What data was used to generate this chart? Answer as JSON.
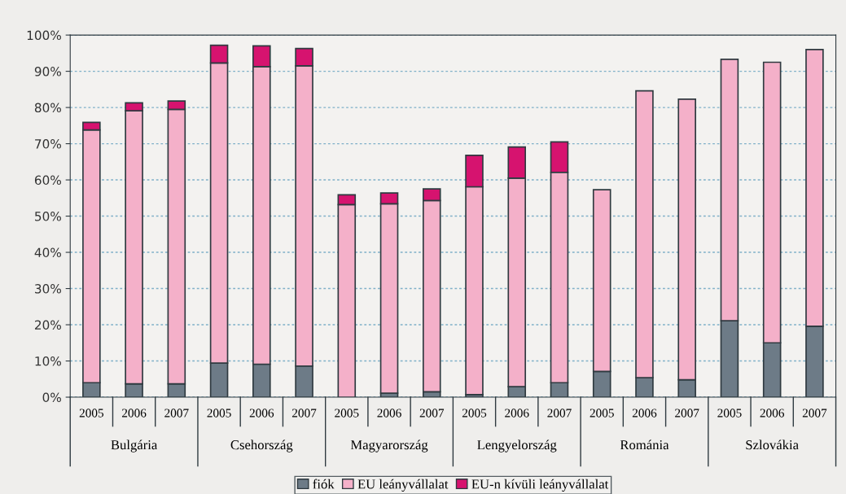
{
  "chart_data": {
    "type": "bar",
    "stacked": true,
    "categories": [
      "2005",
      "2006",
      "2007",
      "2005",
      "2006",
      "2007",
      "2005",
      "2006",
      "2007",
      "2005",
      "2006",
      "2007",
      "2005",
      "2006",
      "2007",
      "2005",
      "2006",
      "2007"
    ],
    "series": [
      {
        "name": "fiók",
        "color": "#6d7b87",
        "values": [
          4.0,
          3.7,
          3.7,
          9.4,
          9.1,
          8.6,
          null,
          1.1,
          1.5,
          0.7,
          2.9,
          4.0,
          7.1,
          5.4,
          4.8,
          21.1,
          15.0,
          19.6
        ]
      },
      {
        "name": "EU leányvállalat",
        "color": "#f4b0c9",
        "values": [
          69.8,
          75.4,
          75.8,
          82.9,
          82.2,
          82.9,
          53.2,
          52.3,
          52.8,
          57.4,
          57.6,
          58.1,
          50.2,
          79.2,
          77.5,
          72.2,
          77.5,
          76.4
        ]
      },
      {
        "name": "EU-n kívüli leányvállalat",
        "color": "#d6136f",
        "values": [
          2.1,
          2.2,
          2.3,
          4.9,
          5.7,
          4.8,
          2.7,
          3.0,
          3.2,
          8.7,
          8.6,
          8.4,
          null,
          null,
          null,
          null,
          null,
          null
        ]
      }
    ],
    "annotations": [
      "Bulgária",
      "Csehország",
      "Magyarország",
      "Lengyelország",
      "Románia",
      "Szlovákia"
    ],
    "ylim": [
      0,
      100
    ],
    "yticks": [
      {
        "value": 0,
        "label": "0%"
      },
      {
        "value": 10,
        "label": "10%"
      },
      {
        "value": 20,
        "label": "20%"
      },
      {
        "value": 30,
        "label": "30%"
      },
      {
        "value": 40,
        "label": "40%"
      },
      {
        "value": 50,
        "label": "50%"
      },
      {
        "value": 60,
        "label": "60%"
      },
      {
        "value": 70,
        "label": "70%"
      },
      {
        "value": 80,
        "label": "80%"
      },
      {
        "value": 90,
        "label": "90%"
      },
      {
        "value": 100,
        "label": "100%"
      }
    ],
    "grid": "y",
    "legend": "bottom"
  }
}
